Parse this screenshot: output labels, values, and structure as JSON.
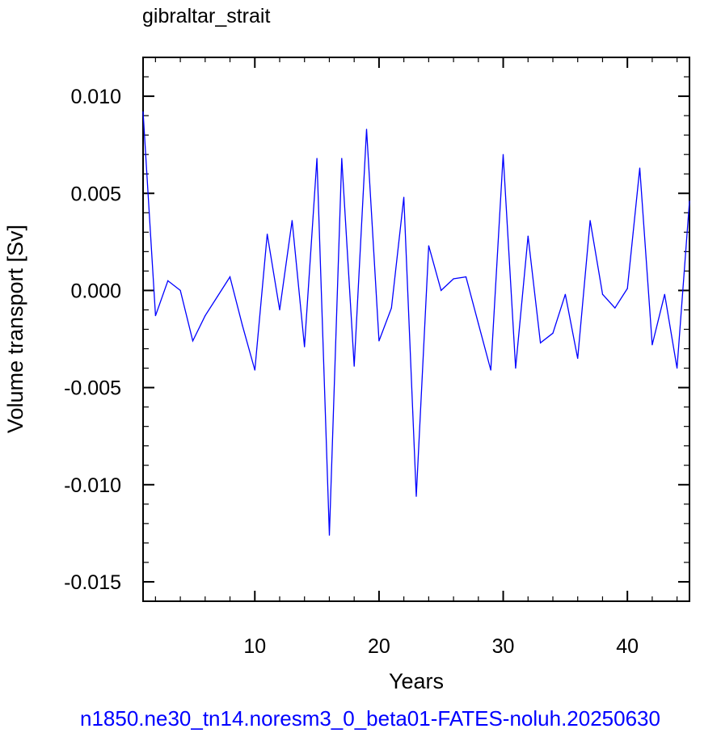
{
  "chart_data": {
    "type": "line",
    "title": "gibraltar_strait",
    "xlabel": "Years",
    "ylabel": "Volume transport [Sv]",
    "caption": "n1850.ne30_tn14.noresm3_0_beta01-FATES-noluh.20250630",
    "xlim": [
      1,
      45
    ],
    "ylim": [
      -0.016,
      0.012
    ],
    "x_ticks": [
      10,
      20,
      30,
      40
    ],
    "y_ticks": [
      0.01,
      0.005,
      0.0,
      -0.005,
      -0.01,
      -0.015
    ],
    "x_tick_labels": [
      "10",
      "20",
      "30",
      "40"
    ],
    "y_tick_labels": [
      "0.010",
      "0.005",
      "0.000",
      "-0.005",
      "-0.010",
      "-0.015"
    ],
    "grid": false,
    "series": [
      {
        "color": "#0000ff",
        "x": [
          1,
          2,
          3,
          4,
          5,
          6,
          7,
          8,
          9,
          10,
          11,
          12,
          13,
          14,
          15,
          16,
          17,
          18,
          19,
          20,
          21,
          22,
          23,
          24,
          25,
          26,
          27,
          28,
          29,
          30,
          31,
          32,
          33,
          34,
          35,
          36,
          37,
          38,
          39,
          40,
          41,
          42,
          43,
          44,
          45
        ],
        "values": [
          0.0092,
          -0.0013,
          0.0005,
          0.0,
          -0.0026,
          -0.0013,
          -0.0003,
          0.0007,
          -0.0018,
          -0.0041,
          0.0029,
          -0.001,
          0.0036,
          -0.0029,
          0.0068,
          -0.0126,
          0.0068,
          -0.0039,
          0.0083,
          -0.0026,
          -0.0009,
          0.0048,
          -0.0106,
          0.0023,
          0.0,
          0.0006,
          0.0007,
          -0.0017,
          -0.0041,
          0.007,
          -0.004,
          0.0028,
          -0.0027,
          -0.0022,
          -0.0002,
          -0.0035,
          0.0036,
          -0.0002,
          -0.0009,
          0.0001,
          0.0063,
          -0.0028,
          -0.0002,
          -0.004,
          0.0046
        ]
      }
    ]
  }
}
